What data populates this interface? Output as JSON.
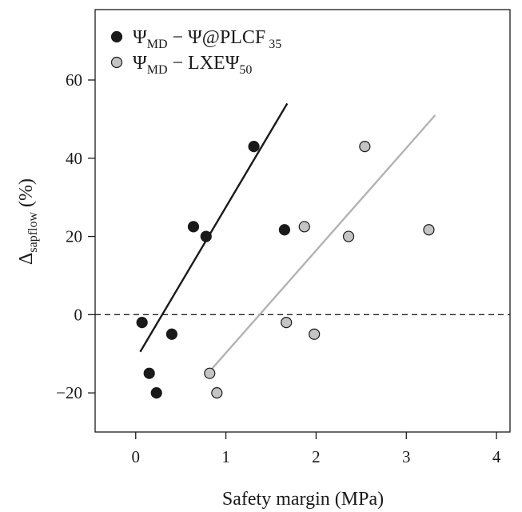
{
  "chart_data": {
    "type": "scatter",
    "xlabel": "Safety margin (MPa)",
    "ylabel": {
      "main": "Δ",
      "sub": "sapflow",
      "suffix": " (%)"
    },
    "xlim": [
      -0.45,
      4.15
    ],
    "ylim": [
      -30,
      78
    ],
    "x_ticks": [
      0,
      1,
      2,
      3,
      4
    ],
    "y_ticks": [
      -20,
      0,
      20,
      40,
      60
    ],
    "y_tick_labels": [
      "−20",
      "0",
      "20",
      "40",
      "60"
    ],
    "reference_line": {
      "y": 0,
      "style": "dashed",
      "color": "#222222"
    },
    "legend": {
      "position": "top-left"
    },
    "series": [
      {
        "name": {
          "main": "Ψ",
          "sub": "MD",
          "rest": " − Ψ@PLCF",
          "tail": "35"
        },
        "color": "#1a1a1a",
        "marker_fill": "#1a1a1a",
        "points": [
          {
            "x": 0.07,
            "y": -2
          },
          {
            "x": 0.15,
            "y": -15
          },
          {
            "x": 0.23,
            "y": -20
          },
          {
            "x": 0.4,
            "y": -5
          },
          {
            "x": 0.64,
            "y": 22.5
          },
          {
            "x": 0.78,
            "y": 20
          },
          {
            "x": 1.31,
            "y": 43
          },
          {
            "x": 1.65,
            "y": 21.7
          }
        ],
        "fit": {
          "x0": 0.05,
          "y0": -9.5,
          "x1": 1.68,
          "y1": 54
        }
      },
      {
        "name": {
          "main": "Ψ",
          "sub": "MD",
          "rest": " − LXEΨ",
          "tail": "50"
        },
        "color": "#b3b3b3",
        "marker_fill": "#c4c4c4",
        "points": [
          {
            "x": 0.82,
            "y": -15
          },
          {
            "x": 0.9,
            "y": -20
          },
          {
            "x": 1.67,
            "y": -2
          },
          {
            "x": 1.87,
            "y": 22.5
          },
          {
            "x": 1.98,
            "y": -5
          },
          {
            "x": 2.36,
            "y": 20
          },
          {
            "x": 2.54,
            "y": 43
          },
          {
            "x": 3.25,
            "y": 21.7
          }
        ],
        "fit": {
          "x0": 0.82,
          "y0": -14.5,
          "x1": 3.32,
          "y1": 51
        }
      }
    ]
  }
}
